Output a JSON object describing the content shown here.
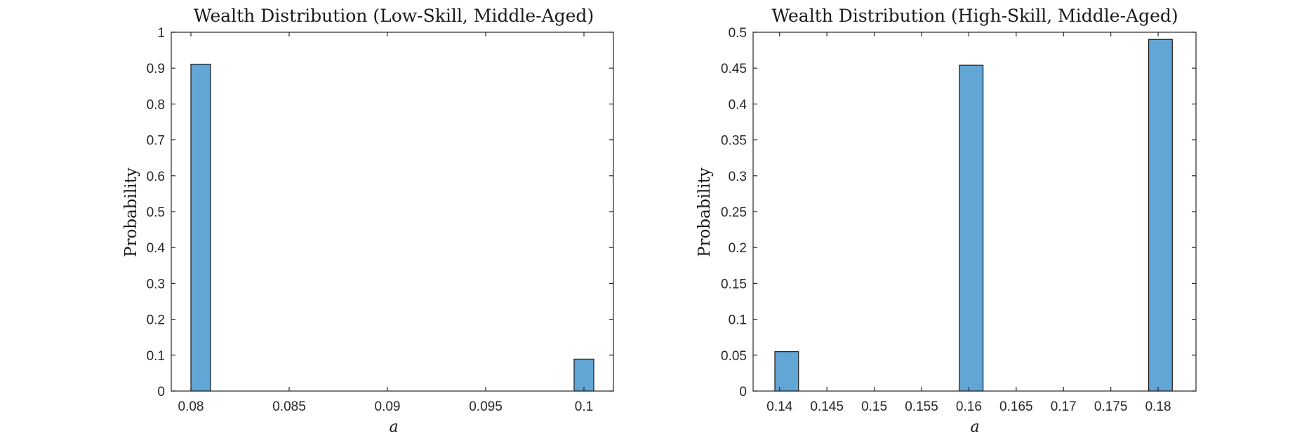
{
  "chart_data": [
    {
      "type": "bar",
      "title": "Wealth Distribution (Low-Skill, Middle-Aged)",
      "xlabel": "a",
      "ylabel": "Probability",
      "xlim": [
        0.079,
        0.1015
      ],
      "ylim": [
        0,
        1
      ],
      "xticks": [
        "0.08",
        "0.085",
        "0.09",
        "0.095",
        "0.1"
      ],
      "xtick_values": [
        0.08,
        0.085,
        0.09,
        0.095,
        0.1
      ],
      "yticks": [
        "0",
        "0.1",
        "0.2",
        "0.3",
        "0.4",
        "0.5",
        "0.6",
        "0.7",
        "0.8",
        "0.9",
        "1"
      ],
      "ytick_values": [
        0,
        0.1,
        0.2,
        0.3,
        0.4,
        0.5,
        0.6,
        0.7,
        0.8,
        0.9,
        1
      ],
      "bins": [
        {
          "x0": 0.08,
          "x1": 0.081,
          "value": 0.911
        },
        {
          "x0": 0.0995,
          "x1": 0.1005,
          "value": 0.089
        }
      ],
      "bar_color": "#62a6d6",
      "grid": false
    },
    {
      "type": "bar",
      "title": "Wealth Distribution (High-Skill, Middle-Aged)",
      "xlabel": "a",
      "ylabel": "Probability",
      "xlim": [
        0.1372,
        0.184
      ],
      "ylim": [
        0,
        0.5
      ],
      "xticks": [
        "0.14",
        "0.145",
        "0.15",
        "0.155",
        "0.16",
        "0.165",
        "0.17",
        "0.175",
        "0.18"
      ],
      "xtick_values": [
        0.14,
        0.145,
        0.15,
        0.155,
        0.16,
        0.165,
        0.17,
        0.175,
        0.18
      ],
      "yticks": [
        "0",
        "0.05",
        "0.1",
        "0.15",
        "0.2",
        "0.25",
        "0.3",
        "0.35",
        "0.4",
        "0.45",
        "0.5"
      ],
      "ytick_values": [
        0,
        0.05,
        0.1,
        0.15,
        0.2,
        0.25,
        0.3,
        0.35,
        0.4,
        0.45,
        0.5
      ],
      "bins": [
        {
          "x0": 0.1395,
          "x1": 0.142,
          "value": 0.055
        },
        {
          "x0": 0.159,
          "x1": 0.1615,
          "value": 0.454
        },
        {
          "x0": 0.179,
          "x1": 0.1815,
          "value": 0.49
        }
      ],
      "bar_color": "#62a6d6",
      "grid": false
    }
  ]
}
